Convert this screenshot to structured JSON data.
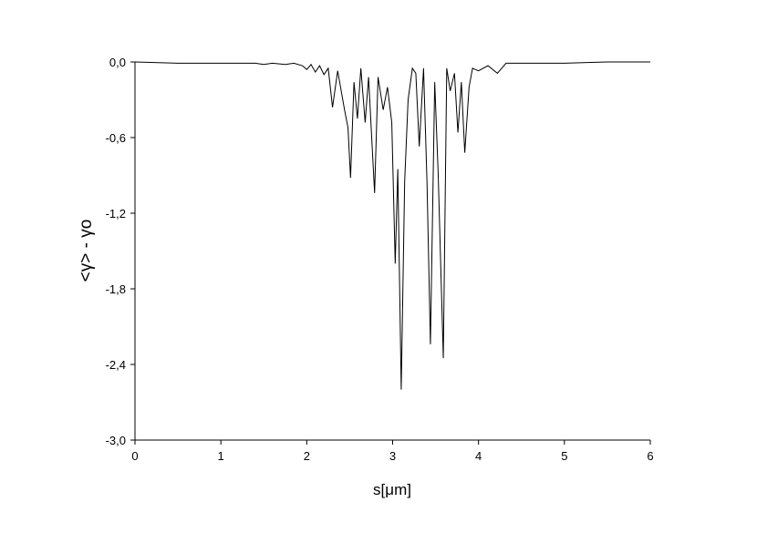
{
  "chart_data": {
    "type": "line",
    "xlabel": "s[μm]",
    "ylabel": "<γ> - γo",
    "color": "#000000",
    "xlim": [
      0,
      6
    ],
    "xticks": [
      0,
      1,
      2,
      3,
      4,
      5,
      6
    ],
    "ylim": [
      -3,
      0
    ],
    "yticks": [
      {
        "value": 0,
        "label": "0,0"
      },
      {
        "value": -0.6,
        "label": "-0,6"
      },
      {
        "value": -1.2,
        "label": "-1,2"
      },
      {
        "value": -1.8,
        "label": "-1,8"
      },
      {
        "value": -2.4,
        "label": "-2,4"
      },
      {
        "value": -3,
        "label": "-3,0"
      }
    ],
    "x": [
      0,
      0.5,
      1.0,
      1.4,
      1.5,
      1.6,
      1.75,
      1.85,
      1.95,
      2.0,
      2.05,
      2.1,
      2.15,
      2.2,
      2.25,
      2.3,
      2.36,
      2.44,
      2.48,
      2.51,
      2.55,
      2.59,
      2.63,
      2.68,
      2.72,
      2.75,
      2.79,
      2.83,
      2.89,
      2.94,
      2.99,
      3.03,
      3.06,
      3.1,
      3.14,
      3.18,
      3.23,
      3.27,
      3.31,
      3.36,
      3.4,
      3.44,
      3.49,
      3.53,
      3.59,
      3.63,
      3.67,
      3.72,
      3.76,
      3.8,
      3.84,
      3.89,
      3.93,
      4.0,
      4.11,
      4.22,
      4.32,
      4.48,
      5.0,
      5.5,
      6.0
    ],
    "values": [
      0,
      -0.01,
      -0.01,
      -0.01,
      -0.02,
      -0.01,
      -0.02,
      -0.01,
      -0.03,
      -0.06,
      -0.02,
      -0.08,
      -0.03,
      -0.1,
      -0.05,
      -0.36,
      -0.07,
      -0.38,
      -0.52,
      -0.92,
      -0.16,
      -0.45,
      -0.05,
      -0.48,
      -0.12,
      -0.52,
      -1.04,
      -0.12,
      -0.38,
      -0.2,
      -0.48,
      -1.6,
      -0.85,
      -2.6,
      -0.95,
      -0.3,
      -0.05,
      -0.09,
      -0.67,
      -0.05,
      -0.95,
      -2.24,
      -0.16,
      -0.88,
      -2.35,
      -0.05,
      -0.23,
      -0.09,
      -0.56,
      -0.16,
      -0.72,
      -0.2,
      -0.05,
      -0.07,
      -0.03,
      -0.09,
      -0.01,
      -0.01,
      -0.01,
      0,
      0
    ]
  }
}
